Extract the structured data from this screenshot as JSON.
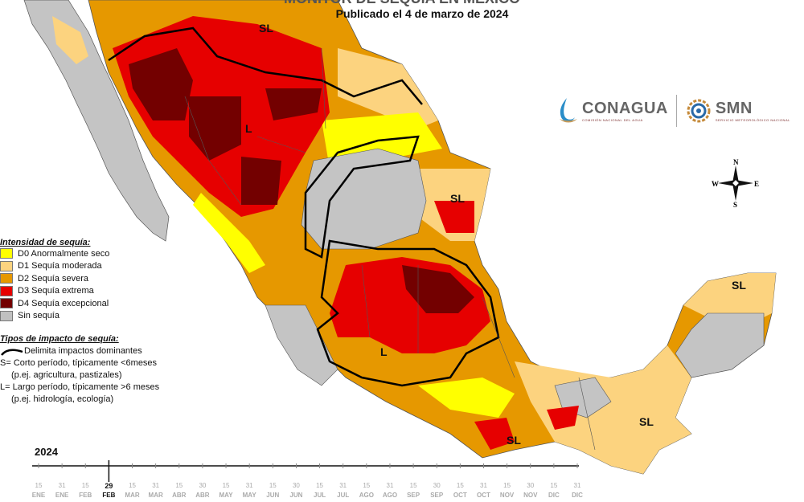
{
  "header": {
    "title": "MONITOR DE SEQUÍA EN MÉXICO",
    "subtitle": "Publicado el 4 de marzo de 2024"
  },
  "map_labels": {
    "sl_northwest": "SL",
    "l_north": "L",
    "sl_northeast": "SL",
    "l_center": "L",
    "sl_south": "SL",
    "sl_southeast": "SL",
    "sl_yucatan": "SL"
  },
  "logos": {
    "conagua_name": "CONAGUA",
    "conagua_sub": "COMISIÓN NACIONAL DEL AGUA",
    "smn_name": "SMN",
    "smn_sub": "SERVICIO METEOROLÓGICO NACIONAL"
  },
  "compass": {
    "n": "N",
    "s": "S",
    "e": "E",
    "w": "W"
  },
  "legend": {
    "title": "Intensidad de sequía:",
    "items": [
      {
        "code": "D0",
        "label": "D0 Anormalmente seco",
        "color": "#ffff00"
      },
      {
        "code": "D1",
        "label": "D1 Sequía moderada",
        "color": "#fcd37f"
      },
      {
        "code": "D2",
        "label": "D2 Sequía severa",
        "color": "#e69800"
      },
      {
        "code": "D3",
        "label": "D3 Sequía extrema",
        "color": "#e60000"
      },
      {
        "code": "D4",
        "label": "D4 Sequía excepcional",
        "color": "#730000"
      },
      {
        "code": "none",
        "label": "Sin sequía",
        "color": "#c0c0c0"
      }
    ]
  },
  "impacts": {
    "title": "Tipos de impacto de sequía:",
    "boundary_label": "Delimita impactos dominantes",
    "short_line1": "S= Corto período, típicamente <6meses",
    "short_line2": "(p.ej. agricultura, pastizales)",
    "long_line1": "L= Largo período, típicamente >6 meses",
    "long_line2": "(p.ej. hidrología, ecología)"
  },
  "timeline": {
    "year": "2024",
    "days": [
      "15",
      "31",
      "15",
      "29",
      "15",
      "31",
      "15",
      "30",
      "15",
      "31",
      "15",
      "30",
      "15",
      "31",
      "15",
      "31",
      "15",
      "30",
      "15",
      "31",
      "15",
      "30",
      "15",
      "31"
    ],
    "months": [
      "ENE",
      "ENE",
      "FEB",
      "FEB",
      "MAR",
      "MAR",
      "ABR",
      "ABR",
      "MAY",
      "MAY",
      "JUN",
      "JUN",
      "JUL",
      "JUL",
      "AGO",
      "AGO",
      "SEP",
      "SEP",
      "OCT",
      "OCT",
      "NOV",
      "NOV",
      "DIC",
      "DIC"
    ],
    "current_index": 3
  }
}
